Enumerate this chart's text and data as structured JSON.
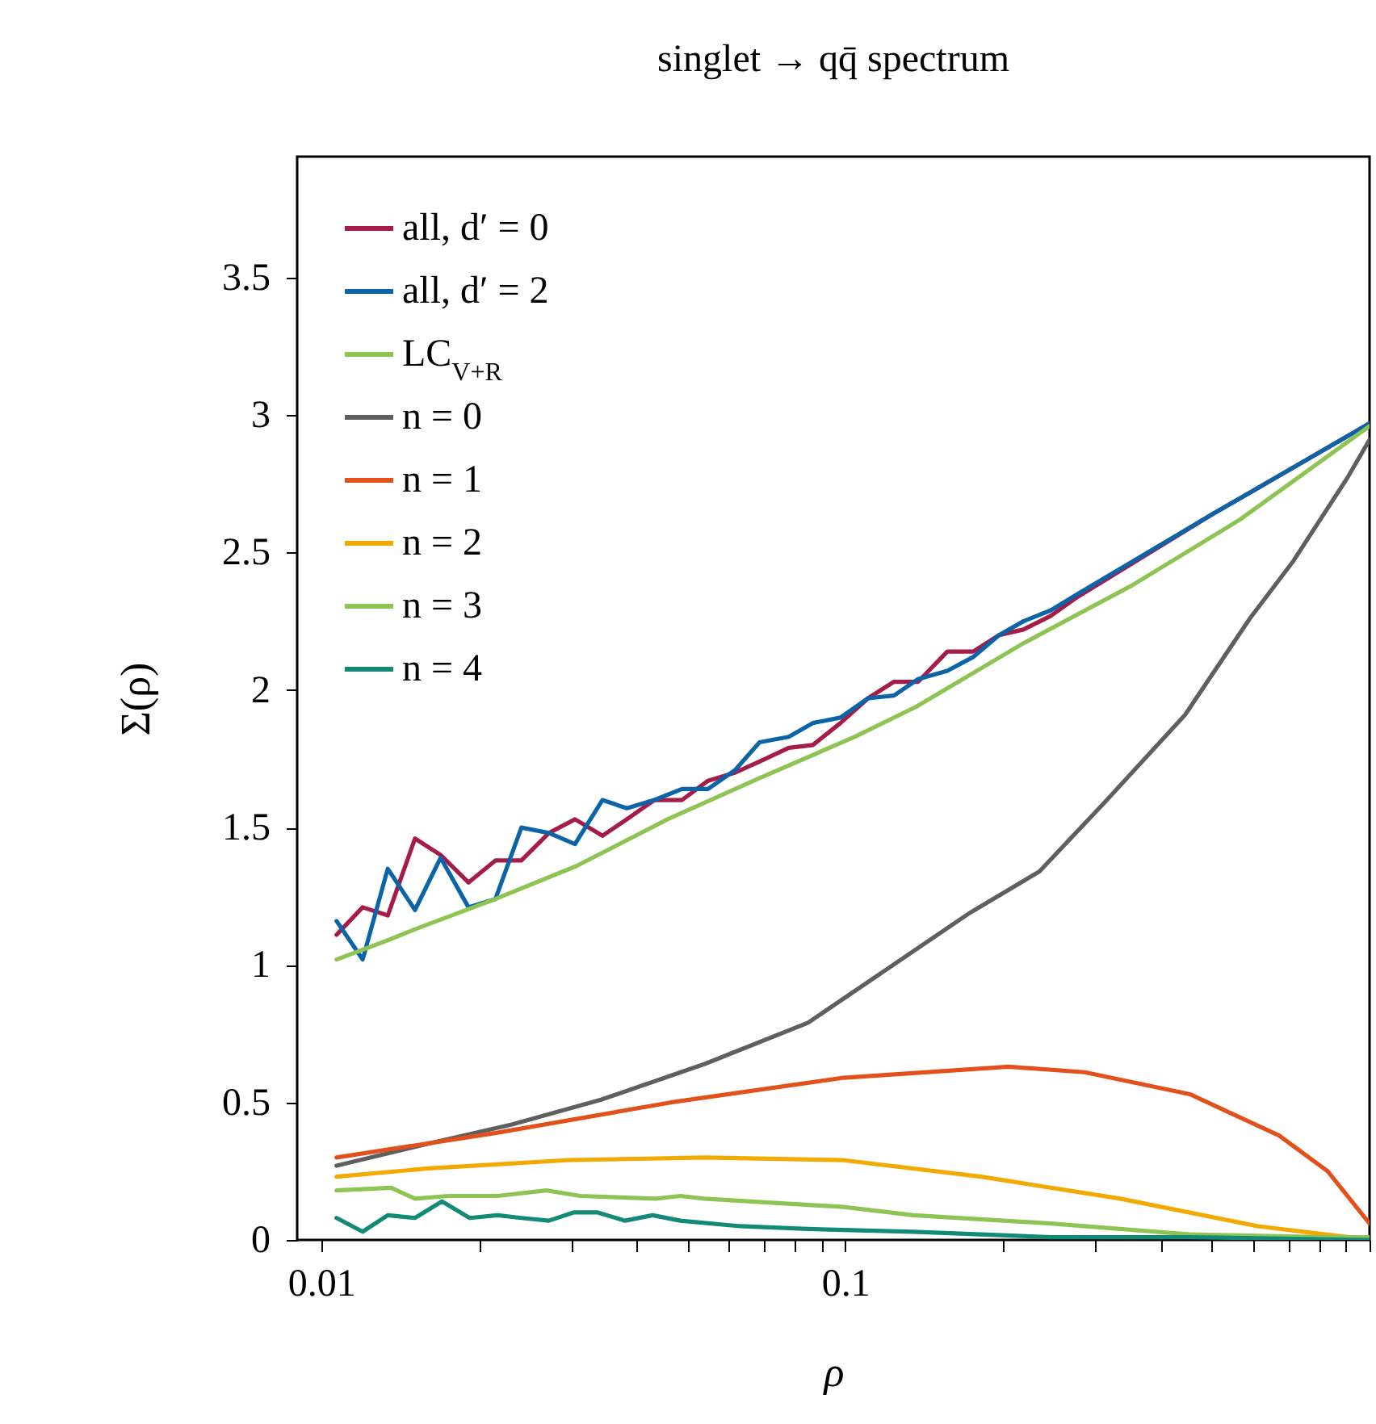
{
  "chart_data": {
    "type": "line",
    "title": "singlet → qq̄ spectrum",
    "xlabel": "ρ",
    "ylabel": "Σ(ρ)",
    "log": "x",
    "xlim": [
      0.009,
      1
    ],
    "ylim": [
      0,
      3.94
    ],
    "xticks": [
      0.01,
      {
        "value": 0.02,
        "label": null
      },
      {
        "value": 0.03,
        "label": null
      },
      {
        "value": 0.04,
        "label": null
      },
      {
        "value": 0.05,
        "label": null
      },
      {
        "value": 0.06,
        "label": null
      },
      {
        "value": 0.07,
        "label": null
      },
      {
        "value": 0.08,
        "label": null
      },
      {
        "value": 0.09,
        "label": null
      },
      0.1,
      {
        "value": 0.2,
        "label": null
      },
      {
        "value": 0.3,
        "label": null
      },
      {
        "value": 0.4,
        "label": null
      },
      {
        "value": 0.5,
        "label": null
      },
      {
        "value": 0.6,
        "label": null
      },
      {
        "value": 0.7,
        "label": null
      },
      {
        "value": 0.8,
        "label": null
      },
      {
        "value": 0.9,
        "label": null
      },
      {
        "value": 1,
        "label": null
      }
    ],
    "yticks": [
      0,
      0.5,
      1,
      1.5,
      2,
      2.5,
      3,
      3.5
    ],
    "grid": false,
    "legend": "top left",
    "line_style": "solid",
    "series": [
      {
        "name": "all, d′ = 0",
        "color": "#a51c48",
        "x": [
          0.0107,
          0.012,
          0.0134,
          0.0151,
          0.0169,
          0.0191,
          0.0215,
          0.0241,
          0.0272,
          0.0305,
          0.0344,
          0.0383,
          0.0432,
          0.0488,
          0.0547,
          0.0617,
          0.0686,
          0.078,
          0.0867,
          0.0979,
          0.1105,
          0.1238,
          0.1377,
          0.1565,
          0.1753,
          0.1965,
          0.2186,
          0.2466,
          0.278,
          0.502,
          1
        ],
        "values": [
          1.11,
          1.21,
          1.18,
          1.46,
          1.4,
          1.3,
          1.38,
          1.38,
          1.48,
          1.53,
          1.47,
          1.53,
          1.6,
          1.6,
          1.67,
          1.7,
          1.74,
          1.79,
          1.8,
          1.88,
          1.97,
          2.03,
          2.03,
          2.14,
          2.14,
          2.2,
          2.22,
          2.27,
          2.34,
          2.64,
          2.97
        ]
      },
      {
        "name": "all, d′ = 2",
        "color": "#0b64a8",
        "x": [
          0.0107,
          0.012,
          0.0134,
          0.0151,
          0.0169,
          0.0191,
          0.0215,
          0.0241,
          0.0272,
          0.0305,
          0.0344,
          0.0383,
          0.0432,
          0.0488,
          0.0547,
          0.0617,
          0.0686,
          0.078,
          0.0867,
          0.0979,
          0.1105,
          0.1238,
          0.1377,
          0.1565,
          0.1753,
          0.1965,
          0.2186,
          0.2466,
          0.278,
          0.502,
          1
        ],
        "values": [
          1.16,
          1.02,
          1.35,
          1.2,
          1.39,
          1.21,
          1.24,
          1.5,
          1.48,
          1.44,
          1.6,
          1.57,
          1.6,
          1.64,
          1.64,
          1.71,
          1.81,
          1.83,
          1.88,
          1.9,
          1.97,
          1.98,
          2.04,
          2.07,
          2.12,
          2.2,
          2.25,
          2.29,
          2.35,
          2.64,
          2.97
        ]
      },
      {
        "name": "LC$_{V+R}$",
        "color": "#8dc453",
        "x": [
          0.0107,
          0.0134,
          0.0151,
          0.0215,
          0.0307,
          0.0458,
          0.0686,
          0.1043,
          0.1367,
          0.2186,
          0.3518,
          0.566,
          1
        ],
        "values": [
          1.02,
          1.09,
          1.13,
          1.24,
          1.36,
          1.53,
          1.68,
          1.83,
          1.94,
          2.17,
          2.38,
          2.62,
          2.96
        ]
      },
      {
        "name": "n = 0",
        "color": "#5f5f5f",
        "x": [
          0.0107,
          0.016,
          0.0231,
          0.0342,
          0.0539,
          0.0849,
          0.1211,
          0.1729,
          0.2346,
          0.3118,
          0.4447,
          0.591,
          0.716,
          0.906,
          1
        ],
        "values": [
          0.27,
          0.35,
          0.42,
          0.51,
          0.64,
          0.79,
          0.99,
          1.19,
          1.34,
          1.59,
          1.91,
          2.26,
          2.47,
          2.77,
          2.91
        ]
      },
      {
        "name": "n = 1",
        "color": "#e2501c",
        "x": [
          0.0107,
          0.0217,
          0.0464,
          0.0993,
          0.2049,
          0.2862,
          0.4542,
          0.672,
          0.832,
          1
        ],
        "values": [
          0.3,
          0.39,
          0.5,
          0.59,
          0.63,
          0.61,
          0.53,
          0.38,
          0.25,
          0.06
        ]
      },
      {
        "name": "n = 2",
        "color": "#f2a900",
        "x": [
          0.0107,
          0.016,
          0.0294,
          0.0539,
          0.0993,
          0.1816,
          0.3347,
          0.612,
          0.912,
          1
        ],
        "values": [
          0.23,
          0.26,
          0.29,
          0.3,
          0.29,
          0.23,
          0.15,
          0.05,
          0.01,
          0.01
        ]
      },
      {
        "name": "n = 3",
        "color": "#8dc453",
        "x": [
          0.0107,
          0.0136,
          0.0151,
          0.0175,
          0.0217,
          0.0269,
          0.0312,
          0.0435,
          0.0484,
          0.0539,
          0.0993,
          0.1348,
          0.2466,
          0.4542,
          0.832,
          1
        ],
        "values": [
          0.18,
          0.19,
          0.15,
          0.16,
          0.16,
          0.18,
          0.16,
          0.15,
          0.16,
          0.15,
          0.12,
          0.09,
          0.06,
          0.02,
          0.01,
          0.01
        ]
      },
      {
        "name": "n = 4",
        "color": "#138a78",
        "x": [
          0.0107,
          0.012,
          0.0134,
          0.0151,
          0.017,
          0.0192,
          0.0217,
          0.0241,
          0.0272,
          0.0303,
          0.0337,
          0.038,
          0.0429,
          0.0484,
          0.063,
          0.0849,
          0.1348,
          0.2466,
          0.4542,
          1
        ],
        "values": [
          0.08,
          0.03,
          0.09,
          0.08,
          0.14,
          0.08,
          0.09,
          0.08,
          0.07,
          0.1,
          0.1,
          0.07,
          0.09,
          0.07,
          0.05,
          0.04,
          0.03,
          0.01,
          0.01,
          0
        ]
      }
    ]
  }
}
